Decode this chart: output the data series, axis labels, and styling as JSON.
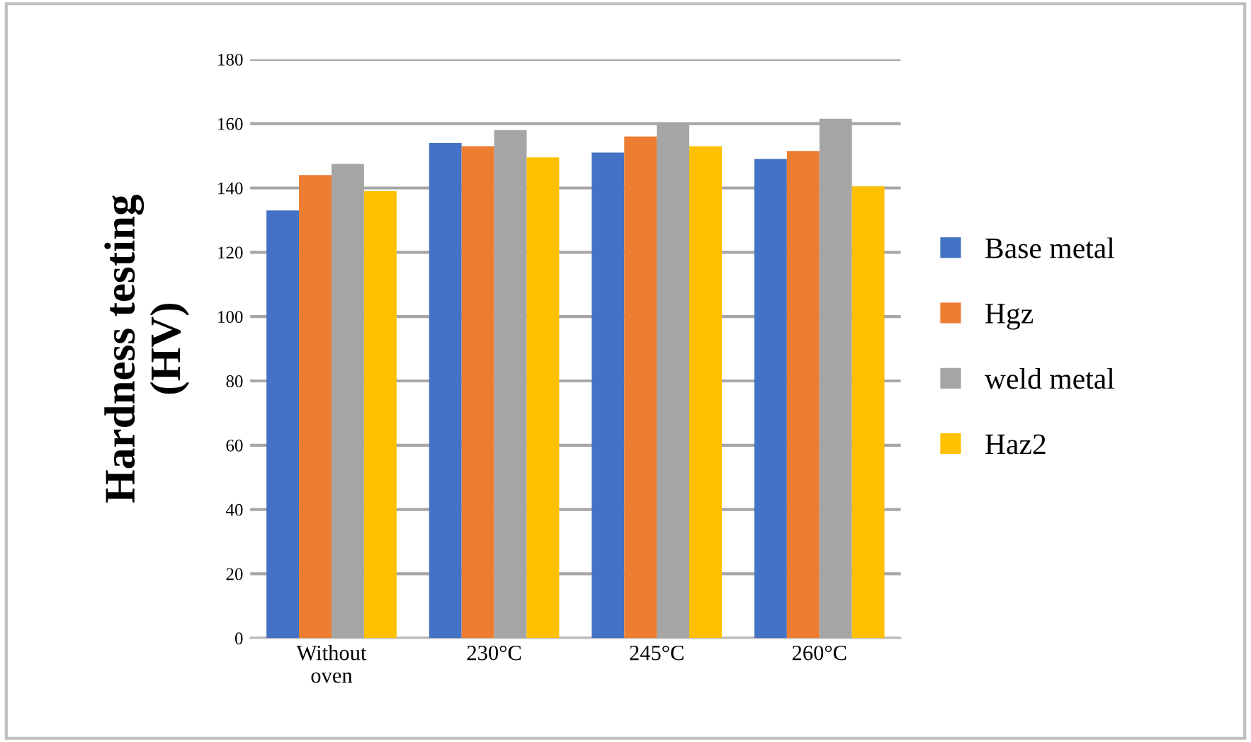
{
  "chart_data": {
    "type": "bar",
    "ylabel": "Hardness testing\n(HV)",
    "categories": [
      "Without\noven",
      "230°C",
      "245°C",
      "260°C"
    ],
    "series": [
      {
        "name": "Base metal",
        "color": "#4472c4",
        "values": [
          133,
          154,
          151,
          149
        ]
      },
      {
        "name": "Hgz",
        "color": "#ed7d31",
        "values": [
          144,
          153,
          156,
          151.5
        ]
      },
      {
        "name": "weld metal",
        "color": "#a5a5a5",
        "values": [
          147.5,
          158,
          160,
          161.5
        ]
      },
      {
        "name": "Haz2",
        "color": "#ffc000",
        "values": [
          139,
          149.5,
          153,
          140.5
        ]
      }
    ],
    "ylim": [
      0,
      180
    ],
    "yticks": [
      0,
      20,
      40,
      60,
      80,
      100,
      120,
      140,
      160,
      180
    ],
    "grid": "y",
    "legend": "right"
  }
}
